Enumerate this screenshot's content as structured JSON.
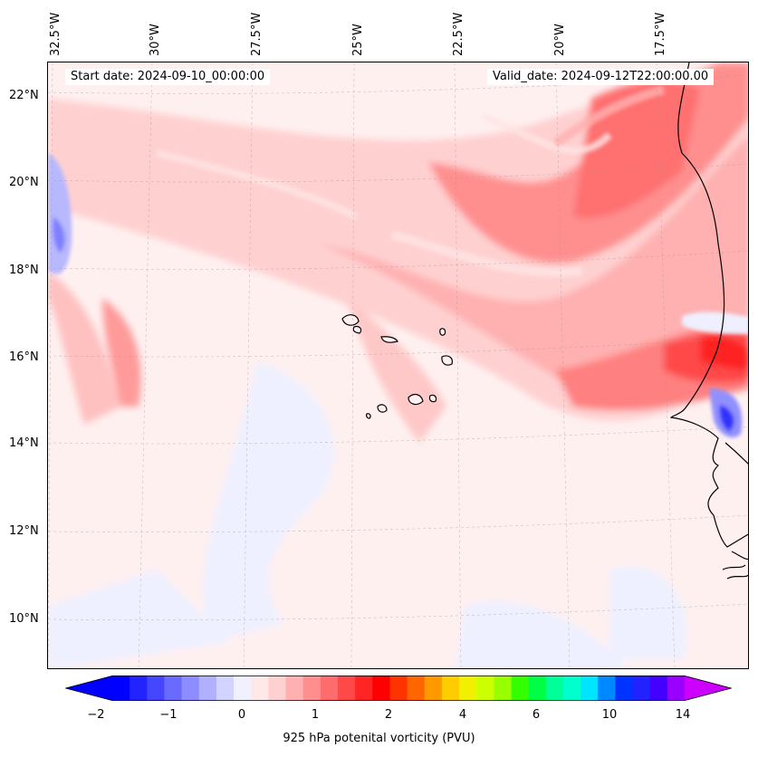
{
  "header": {
    "start_date": "Start date: 2024-09-10_00:00:00",
    "valid_date": "Valid_date: 2024-09-12T22:00:00.00"
  },
  "axes": {
    "longitude_labels": [
      "32.5°W",
      "30°W",
      "27.5°W",
      "25°W",
      "22.5°W",
      "20°W",
      "17.5°W"
    ],
    "latitude_labels": [
      "22°N",
      "20°N",
      "18°N",
      "16°N",
      "14°N",
      "12°N",
      "10°N"
    ]
  },
  "colorbar": {
    "label": "925 hPa potenital vorticity (PVU)",
    "tick_labels": [
      "−2",
      "−1",
      "0",
      "1",
      "2",
      "4",
      "6",
      "10",
      "14"
    ],
    "colors": [
      "#0000ff",
      "#2323ff",
      "#4646ff",
      "#6a6aff",
      "#8d8dff",
      "#b0b0ff",
      "#d3d3ff",
      "#f0f0ff",
      "#ffe8e8",
      "#ffd0d0",
      "#ffb0b0",
      "#ff8f8f",
      "#ff6c6c",
      "#ff4848",
      "#ff2525",
      "#ff0000",
      "#ff3300",
      "#ff6600",
      "#ff9900",
      "#ffcc00",
      "#f0f000",
      "#ccff00",
      "#99ff00",
      "#33ff00",
      "#00ff44",
      "#00ff99",
      "#00ffcc",
      "#00e5ff",
      "#0088ff",
      "#0033ff",
      "#2222ff",
      "#4400ff",
      "#9900ff"
    ],
    "extend_low_color": "#0000ff",
    "extend_high_color": "#cc00ff"
  },
  "chart_data": {
    "type": "heatmap",
    "title": "",
    "variable": "925 hPa potenital vorticity (PVU)",
    "lon_range": [
      "32.5°W",
      "15.5°W"
    ],
    "lat_range": [
      "9°N",
      "22.8°N"
    ],
    "colorbar_ticks": [
      -2,
      -1,
      0,
      1,
      2,
      4,
      6,
      10,
      14
    ],
    "features": [
      {
        "name": "positive PV band NE",
        "value_pvu": 1.5
      },
      {
        "name": "PV maximum near coast ~16°N",
        "value_pvu": 2.0
      },
      {
        "name": "negative PV patch ~14.5°N",
        "value_pvu": -1.5
      },
      {
        "name": "negative PV patch west edge ~19.5°N",
        "value_pvu": -1.0
      }
    ],
    "grid": true
  }
}
